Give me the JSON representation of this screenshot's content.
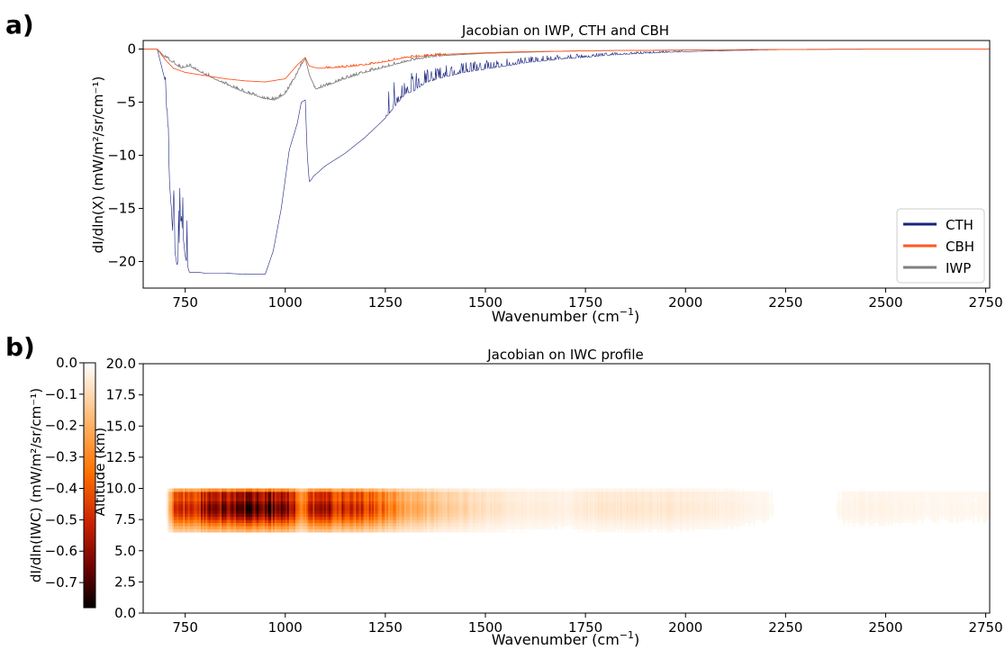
{
  "panel_labels": {
    "a": "a)",
    "b": "b)"
  },
  "chart_data": [
    {
      "type": "line",
      "title": "Jacobian on IWP, CTH and CBH",
      "xlabel_base": "Wavenumber (cm",
      "xlabel_sup": "−1",
      "xlabel_end": ")",
      "ylabel": "dI/dln(X) (mW/m²/sr/cm⁻¹)",
      "xlim": [
        645,
        2760
      ],
      "ylim": [
        -22.5,
        0.8
      ],
      "xticks": [
        750,
        1000,
        1250,
        1500,
        1750,
        2000,
        2250,
        2500,
        2750
      ],
      "yticks": [
        0,
        -5,
        -10,
        -15,
        -20
      ],
      "legend_position": "lower-right",
      "colors": {
        "CTH": "#1a237e",
        "CBH": "#ff5722",
        "IWP": "#808080"
      },
      "series": [
        {
          "name": "CTH",
          "x": [
            645,
            680,
            700,
            710,
            720,
            730,
            740,
            750,
            760,
            770,
            780,
            800,
            850,
            900,
            950,
            970,
            990,
            1010,
            1030,
            1040,
            1050,
            1055,
            1060,
            1065,
            1070,
            1100,
            1150,
            1200,
            1250,
            1300,
            1320,
            1350,
            1400,
            1450,
            1500,
            1550,
            1600,
            1650,
            1700,
            1750,
            1800,
            1900,
            2000,
            2100,
            2200,
            2300,
            2400,
            2500,
            2600,
            2760
          ],
          "y": [
            0,
            0,
            -3,
            -12,
            -18,
            -20.5,
            -16,
            -19.5,
            -21,
            -21,
            -21,
            -21.1,
            -21.1,
            -21.2,
            -21.2,
            -19,
            -15,
            -9.5,
            -7,
            -5,
            -4.8,
            -10,
            -12.5,
            -12.3,
            -12,
            -11,
            -9.8,
            -8.3,
            -6.5,
            -4.2,
            -4,
            -3.2,
            -2.6,
            -2.2,
            -1.9,
            -1.6,
            -1.3,
            -1.1,
            -0.9,
            -0.8,
            -0.6,
            -0.4,
            -0.25,
            -0.15,
            -0.08,
            -0.04,
            -0.02,
            -0.01,
            0,
            0
          ]
        },
        {
          "name": "CBH",
          "x": [
            645,
            680,
            700,
            720,
            750,
            800,
            850,
            900,
            950,
            1000,
            1030,
            1050,
            1060,
            1080,
            1100,
            1150,
            1200,
            1250,
            1300,
            1400,
            1500,
            1600,
            1700,
            1800,
            2000,
            2200,
            2400,
            2760
          ],
          "y": [
            0,
            0,
            -1,
            -1.8,
            -2.2,
            -2.5,
            -2.8,
            -3.0,
            -3.1,
            -2.8,
            -1.5,
            -0.8,
            -1.6,
            -1.8,
            -1.8,
            -1.7,
            -1.5,
            -1.2,
            -0.8,
            -0.5,
            -0.35,
            -0.25,
            -0.2,
            -0.15,
            -0.1,
            -0.05,
            -0.02,
            0
          ]
        },
        {
          "name": "IWP",
          "x": [
            645,
            680,
            700,
            720,
            740,
            760,
            800,
            850,
            900,
            950,
            975,
            1000,
            1020,
            1040,
            1050,
            1060,
            1075,
            1100,
            1150,
            1200,
            1250,
            1300,
            1350,
            1400,
            1500,
            1600,
            1700,
            1800,
            2000,
            2200,
            2400,
            2760
          ],
          "y": [
            0,
            0,
            -0.8,
            -1.3,
            -1.8,
            -1.6,
            -2.4,
            -3.3,
            -4.1,
            -4.7,
            -4.8,
            -4.2,
            -3.0,
            -1.5,
            -0.9,
            -2.4,
            -3.8,
            -3.5,
            -2.8,
            -2.2,
            -1.7,
            -1.2,
            -0.8,
            -0.6,
            -0.4,
            -0.3,
            -0.2,
            -0.15,
            -0.1,
            -0.05,
            -0.02,
            0
          ]
        }
      ]
    },
    {
      "type": "heatmap",
      "title": "Jacobian on IWC profile",
      "xlabel_base": "Wavenumber (cm",
      "xlabel_sup": "−1",
      "xlabel_end": ")",
      "ylabel": "Altitude (km)",
      "xlim": [
        645,
        2760
      ],
      "ylim": [
        0,
        20
      ],
      "xticks": [
        750,
        1000,
        1250,
        1500,
        1750,
        2000,
        2250,
        2500,
        2750
      ],
      "yticks": [
        "0.0",
        "2.5",
        "5.0",
        "7.5",
        "10.0",
        "12.5",
        "15.0",
        "17.5",
        "20.0"
      ],
      "colorbar": {
        "label": "dI/dln(IWC) (mW/m²/sr/cm⁻¹)",
        "range": [
          -0.78,
          0
        ],
        "ticks": [
          "0.0",
          "−0.1",
          "−0.2",
          "−0.3",
          "−0.4",
          "−0.5",
          "−0.6",
          "−0.7"
        ],
        "colormap": "gist_heat"
      },
      "altitude_band_km": [
        6.5,
        9.8
      ],
      "intensity_profile": {
        "x": [
          645,
          700,
          720,
          800,
          900,
          950,
          1000,
          1030,
          1040,
          1050,
          1060,
          1100,
          1200,
          1250,
          1300,
          1400,
          1500,
          1600,
          1700,
          1800,
          1900,
          2000,
          2100,
          2200,
          2250,
          2350,
          2400,
          2500,
          2600,
          2760
        ],
        "v": [
          0,
          0,
          0.55,
          0.75,
          0.85,
          0.9,
          0.82,
          0.6,
          0.35,
          0.5,
          0.68,
          0.7,
          0.62,
          0.45,
          0.3,
          0.18,
          0.1,
          0.06,
          0.05,
          0.09,
          0.08,
          0.07,
          0.05,
          0.03,
          0,
          0,
          0.04,
          0.04,
          0.03,
          0.03
        ]
      }
    }
  ]
}
